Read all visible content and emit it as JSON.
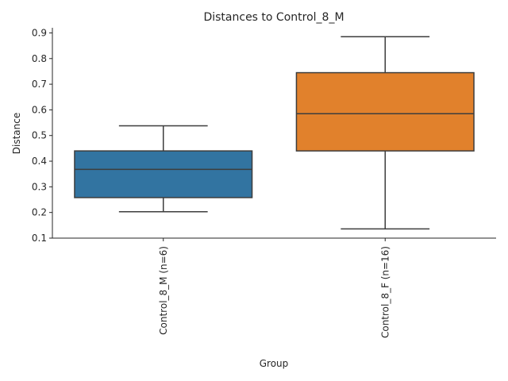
{
  "chart_data": {
    "type": "box",
    "title": "Distances to Control_8_M",
    "xlabel": "Group",
    "ylabel": "Distance",
    "ylim": [
      0.1,
      0.92
    ],
    "yticks": [
      "0.1",
      "0.2",
      "0.3",
      "0.4",
      "0.5",
      "0.6",
      "0.7",
      "0.8",
      "0.9"
    ],
    "categories": [
      "Control_8_M (n=6)",
      "Control_8_F (n=16)"
    ],
    "boxes": [
      {
        "category": "Control_8_M (n=6)",
        "color": "#3274a1",
        "whisker_low": 0.203,
        "q1": 0.258,
        "median": 0.368,
        "q3": 0.44,
        "whisker_high": 0.538
      },
      {
        "category": "Control_8_F (n=16)",
        "color": "#e1812c",
        "whisker_low": 0.136,
        "q1": 0.44,
        "median": 0.585,
        "q3": 0.745,
        "whisker_high": 0.885
      }
    ],
    "grid": false,
    "legend": "none"
  }
}
